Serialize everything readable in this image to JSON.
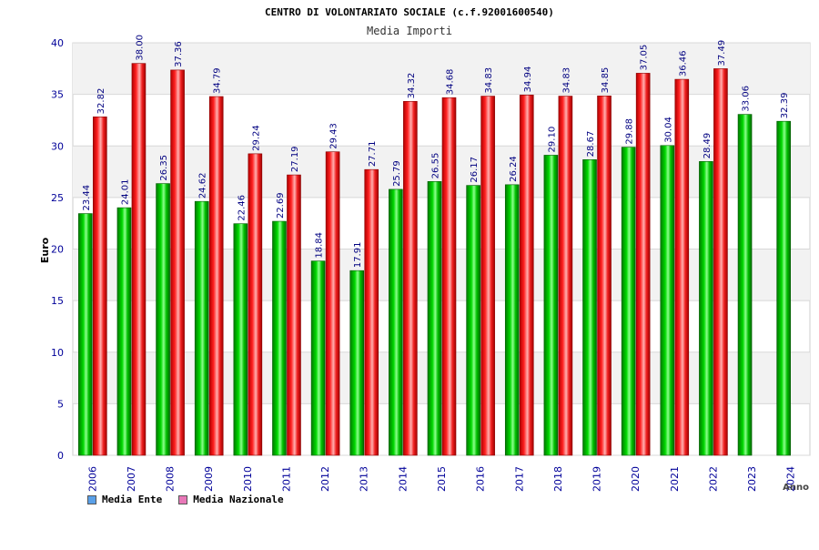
{
  "chart_data": {
    "type": "bar",
    "title": "CENTRO DI VOLONTARIATO SOCIALE (c.f.92001600540)",
    "subtitle": "Media Importi",
    "ylabel": "Euro",
    "xlabel": "Anno",
    "ylim": [
      0,
      40
    ],
    "yticks": [
      "0",
      "5",
      "10",
      "15",
      "20",
      "25",
      "30",
      "35",
      "40"
    ],
    "categories": [
      "2006",
      "2007",
      "2008",
      "2009",
      "2010",
      "2011",
      "2012",
      "2013",
      "2014",
      "2015",
      "2016",
      "2017",
      "2018",
      "2019",
      "2020",
      "2021",
      "2022",
      "2023",
      "2024"
    ],
    "series": [
      {
        "name": "Media Ente",
        "color": "#00c800",
        "values": [
          23.44,
          24.01,
          26.35,
          24.62,
          22.46,
          22.69,
          18.84,
          17.91,
          25.79,
          26.55,
          26.17,
          26.24,
          29.1,
          28.67,
          29.88,
          30.04,
          28.49,
          33.06,
          32.39
        ],
        "labels": [
          "23.44",
          "24.01",
          "26.35",
          "24.62",
          "22.46",
          "22.69",
          "18.84",
          "17.91",
          "25.79",
          "26.55",
          "26.17",
          "26.24",
          "29.10",
          "28.67",
          "29.88",
          "30.04",
          "28.49",
          "33.06",
          "32.39"
        ]
      },
      {
        "name": "Media Nazionale",
        "color": "#e8282c",
        "values": [
          32.82,
          38.0,
          37.36,
          34.79,
          29.24,
          27.19,
          29.43,
          27.71,
          34.32,
          34.68,
          34.83,
          34.94,
          34.83,
          34.85,
          37.05,
          36.46,
          37.49,
          null,
          null
        ],
        "labels": [
          "32.82",
          "38.00",
          "37.36",
          "34.79",
          "29.24",
          "27.19",
          "29.43",
          "27.71",
          "34.32",
          "34.68",
          "34.83",
          "34.94",
          "34.83",
          "34.85",
          "37.05",
          "36.46",
          "37.49",
          null,
          null
        ]
      }
    ]
  },
  "legend": {
    "items": [
      {
        "label": "Media Ente",
        "color": "#5aa0e8"
      },
      {
        "label": "Media Nazionale",
        "color": "#e878b8"
      }
    ]
  },
  "colors": {
    "axis_text": "#000099",
    "band": "#f2f2f2",
    "value_label": "#000080"
  }
}
